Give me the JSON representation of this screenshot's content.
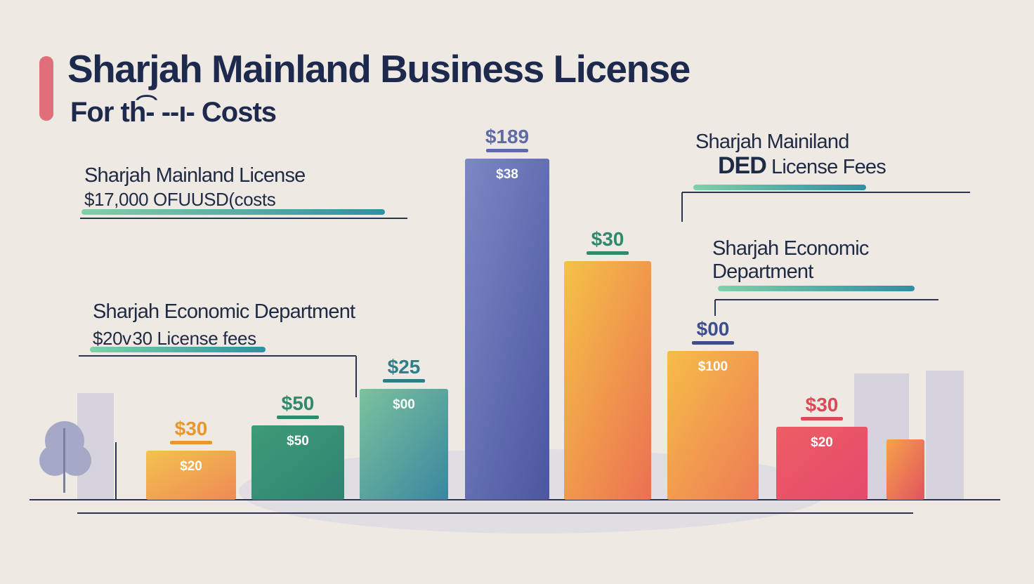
{
  "title": "Sharjah Mainland Business License",
  "subtitle": "For th͡‐ ‐‐ı‐ Costs",
  "notes": {
    "left_top": {
      "heading": "Sharjah Mainland License",
      "value": "$17,000 OFUUSD(costs"
    },
    "left_bottom": {
      "heading": "Sharjah  Economic Department",
      "value": "$20ᴠ 30 License fees"
    },
    "right_top": {
      "line1": "Sharjah  Mainiland",
      "line2_bold": "DED",
      "line2_rest": " License Fees"
    },
    "right_mid": {
      "line1": "Sharjah Economic",
      "line2": "Department"
    }
  },
  "colors": {
    "background": "#efe9e4",
    "title": "#1d2a4d",
    "accent": "#e06f79",
    "baseline": "#2b3550",
    "underline_gradient": [
      "#7fd1a8",
      "#2f8fa4"
    ]
  },
  "chart_data": {
    "type": "bar",
    "title": "Sharjah Mainland Business License",
    "xlabel": "",
    "ylabel": "",
    "grid": false,
    "legend": "none",
    "categories": [
      "",
      "",
      "",
      "",
      "",
      "",
      "",
      ""
    ],
    "values": [
      30,
      50,
      25,
      189,
      30,
      0,
      30,
      0
    ],
    "top_labels": [
      "$30",
      "$50",
      "$25",
      "$189",
      "$30",
      "$00",
      "$30",
      ""
    ],
    "inner_labels": [
      "$20",
      "$50",
      "$00",
      "$38",
      "",
      "$100",
      "$20",
      ""
    ],
    "bar_colors": [
      [
        "#f3c24e",
        "#ee8a55"
      ],
      [
        "#3f9b78",
        "#2f8371"
      ],
      [
        "#7bc29c",
        "#3a86a0"
      ],
      [
        "#7b88c4",
        "#4b56a0"
      ],
      [
        "#f4c246",
        "#ec7052"
      ],
      [
        "#f6bd47",
        "#ed7b56"
      ],
      [
        "#ee5d64",
        "#e34a6d"
      ],
      [
        "#f6a24a",
        "#e1535f"
      ]
    ],
    "label_colors": [
      "#e8962e",
      "#2f8a6c",
      "#2f7e8a",
      "#5f6aa8",
      "#2f8a6c",
      "#3d4e8f",
      "#db4b56",
      "#000000"
    ]
  }
}
